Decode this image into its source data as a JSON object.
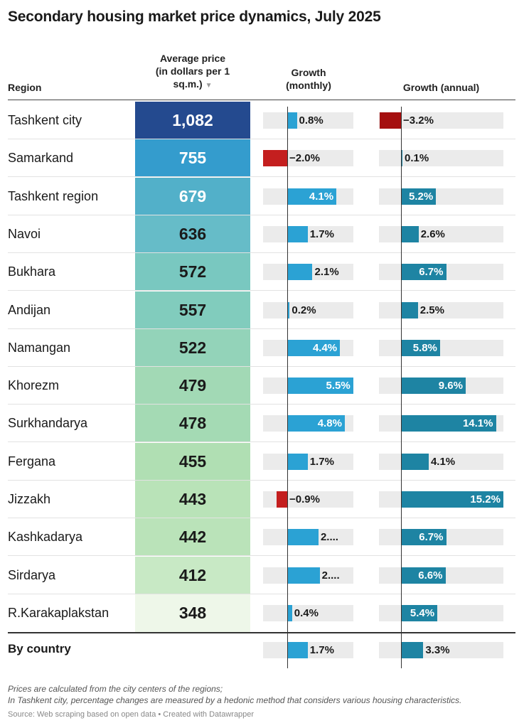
{
  "title": "Secondary housing market price dynamics, July 2025",
  "headers": {
    "region": "Region",
    "price_line1": "Average price",
    "price_line2": "(in dollars per 1",
    "price_line3": "sq.m.)",
    "sort_icon": "▼",
    "monthly_line1": "Growth",
    "monthly_line2": "(monthly)",
    "annual": "Growth (annual)"
  },
  "chart_data": {
    "type": "table",
    "columns": [
      "Region",
      "Average price (in dollars per 1 sq.m.)",
      "Growth (monthly)",
      "Growth (annual)"
    ],
    "rows": [
      {
        "region": "Tashkent city",
        "price": 1082,
        "price_label": "1,082",
        "monthly": 0.8,
        "monthly_label": "0.8%",
        "annual": -3.2,
        "annual_label": "−3.2%"
      },
      {
        "region": "Samarkand",
        "price": 755,
        "price_label": "755",
        "monthly": -2.0,
        "monthly_label": "−2.0%",
        "annual": 0.1,
        "annual_label": "0.1%"
      },
      {
        "region": "Tashkent region",
        "price": 679,
        "price_label": "679",
        "monthly": 4.1,
        "monthly_label": "4.1%",
        "annual": 5.2,
        "annual_label": "5.2%"
      },
      {
        "region": "Navoi",
        "price": 636,
        "price_label": "636",
        "monthly": 1.7,
        "monthly_label": "1.7%",
        "annual": 2.6,
        "annual_label": "2.6%"
      },
      {
        "region": "Bukhara",
        "price": 572,
        "price_label": "572",
        "monthly": 2.1,
        "monthly_label": "2.1%",
        "annual": 6.7,
        "annual_label": "6.7%"
      },
      {
        "region": "Andijan",
        "price": 557,
        "price_label": "557",
        "monthly": 0.2,
        "monthly_label": "0.2%",
        "annual": 2.5,
        "annual_label": "2.5%"
      },
      {
        "region": "Namangan",
        "price": 522,
        "price_label": "522",
        "monthly": 4.4,
        "monthly_label": "4.4%",
        "annual": 5.8,
        "annual_label": "5.8%"
      },
      {
        "region": "Khorezm",
        "price": 479,
        "price_label": "479",
        "monthly": 5.5,
        "monthly_label": "5.5%",
        "annual": 9.6,
        "annual_label": "9.6%"
      },
      {
        "region": "Surkhandarya",
        "price": 478,
        "price_label": "478",
        "monthly": 4.8,
        "monthly_label": "4.8%",
        "annual": 14.1,
        "annual_label": "14.1%"
      },
      {
        "region": "Fergana",
        "price": 455,
        "price_label": "455",
        "monthly": 1.7,
        "monthly_label": "1.7%",
        "annual": 4.1,
        "annual_label": "4.1%"
      },
      {
        "region": "Jizzakh",
        "price": 443,
        "price_label": "443",
        "monthly": -0.9,
        "monthly_label": "−0.9%",
        "annual": 15.2,
        "annual_label": "15.2%"
      },
      {
        "region": "Kashkadarya",
        "price": 442,
        "price_label": "442",
        "monthly": 2.6,
        "monthly_label": "2....",
        "annual": 6.7,
        "annual_label": "6.7%"
      },
      {
        "region": "Sirdarya",
        "price": 412,
        "price_label": "412",
        "monthly": 2.7,
        "monthly_label": "2....",
        "annual": 6.6,
        "annual_label": "6.6%"
      },
      {
        "region": "R.Karakaplakstan",
        "price": 348,
        "price_label": "348",
        "monthly": 0.4,
        "monthly_label": "0.4%",
        "annual": 5.4,
        "annual_label": "5.4%"
      }
    ],
    "total": {
      "region": "By country",
      "monthly": 1.7,
      "monthly_label": "1.7%",
      "annual": 3.3,
      "annual_label": "3.3%"
    },
    "monthly_range": [
      -2.0,
      5.5
    ],
    "annual_range": [
      -3.2,
      15.2
    ]
  },
  "colors": {
    "positive_monthly": "#2ba2d4",
    "positive_annual": "#1e84a3",
    "negative": "#c41f1f",
    "negative_dark": "#a50f0f",
    "track": "#ebebeb",
    "price_scale": [
      "#244a8f",
      "#349ccd",
      "#52b0c9",
      "#66bcc8",
      "#79c8c0",
      "#81ccbd",
      "#93d3b9",
      "#a2d9b5",
      "#a4dab4",
      "#b0dfb3",
      "#b9e3b8",
      "#bae3b9",
      "#c8e9c5",
      "#eef7e9"
    ]
  },
  "notes": {
    "line1": "Prices are calculated from the city centers of the regions;",
    "line2": "In Tashkent city, percentage changes are measured by a hedonic method that considers various housing characteristics.",
    "source": "Source: Web scraping based on open data • Created with Datawrapper"
  }
}
